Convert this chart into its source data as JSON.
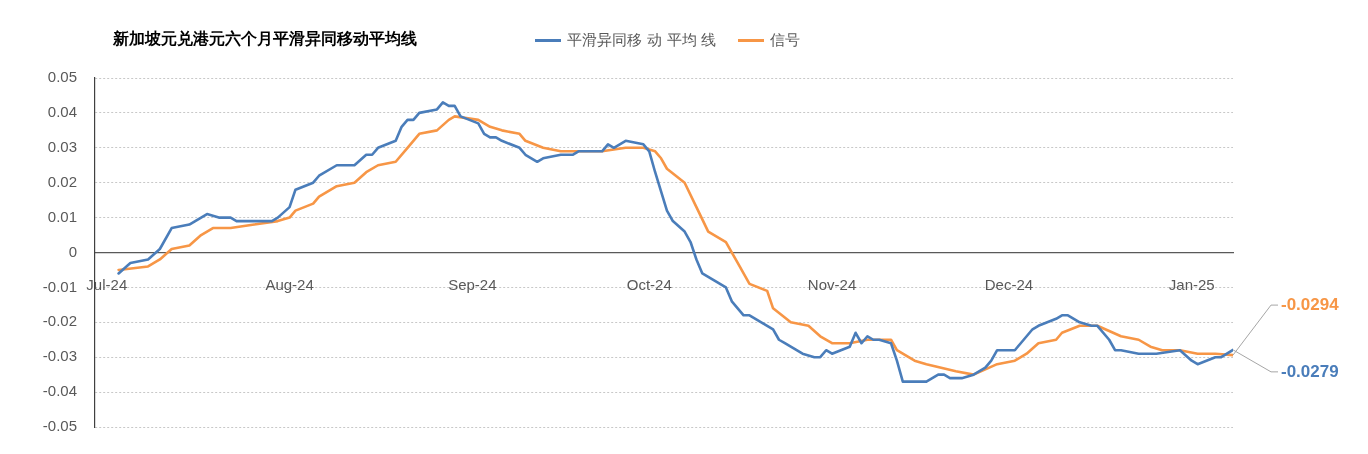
{
  "chart_data": {
    "type": "line",
    "title": "新加坡元兑港元六个月平滑异同移动平均线",
    "legend": "top",
    "grid": "y",
    "marker": "none",
    "line_style": "solid",
    "xlim": [
      "2024-06-29",
      "2025-01-08"
    ],
    "xticks": [
      {
        "value": "2024-07-01",
        "label": "Jul-24"
      },
      {
        "value": "2024-08-01",
        "label": "Aug-24"
      },
      {
        "value": "2024-09-01",
        "label": "Sep-24"
      },
      {
        "value": "2024-10-01",
        "label": "Oct-24"
      },
      {
        "value": "2024-11-01",
        "label": "Nov-24"
      },
      {
        "value": "2024-12-01",
        "label": "Dec-24"
      },
      {
        "value": "2025-01-01",
        "label": "Jan-25"
      }
    ],
    "ylim": [
      -0.05,
      0.05
    ],
    "yticks": [
      -0.05,
      -0.04,
      -0.03,
      -0.02,
      -0.01,
      0,
      0.01,
      0.02,
      0.03,
      0.04,
      0.05
    ],
    "series": [
      {
        "name": "平滑异同移 动 平均 线",
        "color": "#4a7dba",
        "x": [
          "2024-07-03",
          "2024-07-05",
          "2024-07-08",
          "2024-07-10",
          "2024-07-12",
          "2024-07-15",
          "2024-07-16",
          "2024-07-17",
          "2024-07-18",
          "2024-07-20",
          "2024-07-22",
          "2024-07-23",
          "2024-07-25",
          "2024-07-29",
          "2024-07-30",
          "2024-08-01",
          "2024-08-02",
          "2024-08-05",
          "2024-08-06",
          "2024-08-09",
          "2024-08-12",
          "2024-08-14",
          "2024-08-15",
          "2024-08-16",
          "2024-08-19",
          "2024-08-20",
          "2024-08-21",
          "2024-08-22",
          "2024-08-23",
          "2024-08-26",
          "2024-08-27",
          "2024-08-28",
          "2024-08-29",
          "2024-08-30",
          "2024-09-02",
          "2024-09-03",
          "2024-09-04",
          "2024-09-05",
          "2024-09-06",
          "2024-09-09",
          "2024-09-10",
          "2024-09-11",
          "2024-09-12",
          "2024-09-13",
          "2024-09-16",
          "2024-09-18",
          "2024-09-19",
          "2024-09-23",
          "2024-09-24",
          "2024-09-25",
          "2024-09-27",
          "2024-09-30",
          "2024-10-01",
          "2024-10-02",
          "2024-10-04",
          "2024-10-05",
          "2024-10-07",
          "2024-10-08",
          "2024-10-09",
          "2024-10-10",
          "2024-10-12",
          "2024-10-14",
          "2024-10-15",
          "2024-10-17",
          "2024-10-18",
          "2024-10-19",
          "2024-10-21",
          "2024-10-22",
          "2024-10-23",
          "2024-10-24",
          "2024-10-25",
          "2024-10-27",
          "2024-10-29",
          "2024-10-30",
          "2024-10-31",
          "2024-11-01",
          "2024-11-04",
          "2024-11-05",
          "2024-11-06",
          "2024-11-07",
          "2024-11-08",
          "2024-11-09",
          "2024-11-11",
          "2024-11-12",
          "2024-11-13",
          "2024-11-15",
          "2024-11-17",
          "2024-11-19",
          "2024-11-20",
          "2024-11-21",
          "2024-11-23",
          "2024-11-25",
          "2024-11-27",
          "2024-11-28",
          "2024-11-29",
          "2024-12-02",
          "2024-12-03",
          "2024-12-05",
          "2024-12-06",
          "2024-12-09",
          "2024-12-10",
          "2024-12-11",
          "2024-12-13",
          "2024-12-15",
          "2024-12-16",
          "2024-12-18",
          "2024-12-19",
          "2024-12-20",
          "2024-12-23",
          "2024-12-24",
          "2024-12-26",
          "2024-12-30",
          "2025-01-01",
          "2025-01-02",
          "2025-01-05",
          "2025-01-06",
          "2025-01-08"
        ],
        "values": [
          -0.006,
          -0.003,
          -0.002,
          0.001,
          0.007,
          0.008,
          0.009,
          0.01,
          0.011,
          0.01,
          0.01,
          0.009,
          0.009,
          0.009,
          0.01,
          0.013,
          0.018,
          0.02,
          0.022,
          0.025,
          0.025,
          0.028,
          0.028,
          0.03,
          0.032,
          0.036,
          0.038,
          0.038,
          0.04,
          0.041,
          0.043,
          0.042,
          0.042,
          0.039,
          0.037,
          0.034,
          0.033,
          0.033,
          0.032,
          0.03,
          0.028,
          0.027,
          0.026,
          0.027,
          0.028,
          0.028,
          0.029,
          0.029,
          0.031,
          0.03,
          0.032,
          0.031,
          0.029,
          0.023,
          0.012,
          0.009,
          0.006,
          0.003,
          -0.002,
          -0.006,
          -0.008,
          -0.01,
          -0.014,
          -0.018,
          -0.018,
          -0.019,
          -0.021,
          -0.022,
          -0.025,
          -0.026,
          -0.027,
          -0.029,
          -0.03,
          -0.03,
          -0.028,
          -0.029,
          -0.027,
          -0.023,
          -0.026,
          -0.024,
          -0.025,
          -0.025,
          -0.026,
          -0.031,
          -0.037,
          -0.037,
          -0.037,
          -0.035,
          -0.035,
          -0.036,
          -0.036,
          -0.035,
          -0.033,
          -0.031,
          -0.028,
          -0.028,
          -0.026,
          -0.022,
          -0.021,
          -0.019,
          -0.018,
          -0.018,
          -0.02,
          -0.021,
          -0.021,
          -0.025,
          -0.028,
          -0.028,
          -0.029,
          -0.029,
          -0.029,
          -0.028,
          -0.031,
          -0.032,
          -0.03,
          -0.03,
          -0.0279
        ],
        "value_labels": [
          null,
          null,
          null,
          null,
          null,
          null,
          null,
          null,
          null,
          null,
          null,
          null,
          null,
          null,
          null,
          null,
          null,
          null,
          null,
          null,
          null,
          null,
          null,
          null,
          null,
          null,
          null,
          null,
          null,
          null,
          null,
          null,
          null,
          null,
          null,
          null,
          null,
          null,
          null,
          null,
          null,
          null,
          null,
          null,
          null,
          null,
          null,
          null,
          null,
          null,
          null,
          null,
          null,
          null,
          null,
          null,
          null,
          null,
          null,
          null,
          null,
          null,
          null,
          null,
          null,
          null,
          null,
          null,
          null,
          null,
          null,
          null,
          null,
          null,
          null,
          null,
          null,
          null,
          null,
          null,
          null,
          null,
          null,
          null,
          null,
          null,
          null,
          null,
          null,
          null,
          null,
          null,
          null,
          null,
          null,
          null,
          null,
          null,
          null,
          null,
          null,
          null,
          null,
          null,
          null,
          null,
          null,
          null,
          null,
          null,
          null,
          null,
          null,
          null,
          null,
          null,
          "-0.0279"
        ]
      },
      {
        "name": "信号",
        "color": "#f79646",
        "x": [
          "2024-07-03",
          "2024-07-08",
          "2024-07-10",
          "2024-07-12",
          "2024-07-15",
          "2024-07-17",
          "2024-07-19",
          "2024-07-22",
          "2024-07-26",
          "2024-07-30",
          "2024-08-01",
          "2024-08-02",
          "2024-08-05",
          "2024-08-06",
          "2024-08-09",
          "2024-08-12",
          "2024-08-14",
          "2024-08-16",
          "2024-08-19",
          "2024-08-21",
          "2024-08-23",
          "2024-08-26",
          "2024-08-28",
          "2024-08-29",
          "2024-09-02",
          "2024-09-03",
          "2024-09-04",
          "2024-09-06",
          "2024-09-09",
          "2024-09-10",
          "2024-09-13",
          "2024-09-16",
          "2024-09-18",
          "2024-09-23",
          "2024-09-27",
          "2024-09-30",
          "2024-10-02",
          "2024-10-03",
          "2024-10-04",
          "2024-10-07",
          "2024-10-09",
          "2024-10-11",
          "2024-10-14",
          "2024-10-16",
          "2024-10-18",
          "2024-10-21",
          "2024-10-22",
          "2024-10-25",
          "2024-10-28",
          "2024-10-30",
          "2024-11-01",
          "2024-11-04",
          "2024-11-07",
          "2024-11-11",
          "2024-11-12",
          "2024-11-15",
          "2024-11-17",
          "2024-11-22",
          "2024-11-25",
          "2024-11-29",
          "2024-12-02",
          "2024-12-04",
          "2024-12-06",
          "2024-12-09",
          "2024-12-10",
          "2024-12-13",
          "2024-12-16",
          "2024-12-20",
          "2024-12-23",
          "2024-12-25",
          "2024-12-27",
          "2024-12-30",
          "2025-01-02",
          "2025-01-05",
          "2025-01-08"
        ],
        "values": [
          -0.005,
          -0.004,
          -0.002,
          0.001,
          0.002,
          0.005,
          0.007,
          0.007,
          0.008,
          0.009,
          0.01,
          0.012,
          0.014,
          0.016,
          0.019,
          0.02,
          0.023,
          0.025,
          0.026,
          0.03,
          0.034,
          0.035,
          0.038,
          0.039,
          0.038,
          0.037,
          0.036,
          0.035,
          0.034,
          0.032,
          0.03,
          0.029,
          0.029,
          0.029,
          0.03,
          0.03,
          0.029,
          0.027,
          0.024,
          0.02,
          0.013,
          0.006,
          0.003,
          -0.003,
          -0.009,
          -0.011,
          -0.016,
          -0.02,
          -0.021,
          -0.024,
          -0.026,
          -0.026,
          -0.025,
          -0.025,
          -0.028,
          -0.031,
          -0.032,
          -0.034,
          -0.035,
          -0.032,
          -0.031,
          -0.029,
          -0.026,
          -0.025,
          -0.023,
          -0.021,
          -0.021,
          -0.024,
          -0.025,
          -0.027,
          -0.028,
          -0.028,
          -0.029,
          -0.029,
          -0.0294
        ],
        "value_labels": [
          null,
          null,
          null,
          null,
          null,
          null,
          null,
          null,
          null,
          null,
          null,
          null,
          null,
          null,
          null,
          null,
          null,
          null,
          null,
          null,
          null,
          null,
          null,
          null,
          null,
          null,
          null,
          null,
          null,
          null,
          null,
          null,
          null,
          null,
          null,
          null,
          null,
          null,
          null,
          null,
          null,
          null,
          null,
          null,
          null,
          null,
          null,
          null,
          null,
          null,
          null,
          null,
          null,
          null,
          null,
          null,
          null,
          null,
          null,
          null,
          null,
          null,
          null,
          null,
          null,
          null,
          null,
          null,
          null,
          null,
          null,
          null,
          null,
          null,
          "-0.0294"
        ]
      }
    ]
  }
}
